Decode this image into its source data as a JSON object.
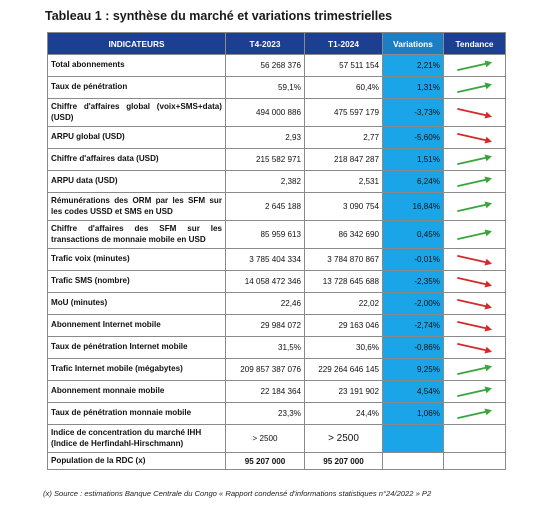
{
  "title": "Tableau 1 : synthèse du marché et variations trimestrielles",
  "headers": {
    "indicators": "INDICATEURS",
    "t4_2023": "T4-2023",
    "t1_2024": "T1-2024",
    "variations": "Variations",
    "tendance": "Tendance"
  },
  "colors": {
    "header_bg": "#1d3f91",
    "variation_bg": "#1aa5e8",
    "arrow_up": "#3aa53a",
    "arrow_down": "#d42a2a"
  },
  "rows": [
    {
      "label": "Total abonnements",
      "t4": "56 268 376",
      "t1": "57 511 154",
      "var": "2,21%",
      "trend": "up"
    },
    {
      "label": "Taux de pénétration",
      "t4": "59,1%",
      "t1": "60,4%",
      "var": "1,31%",
      "trend": "up"
    },
    {
      "label": "Chiffre d'affaires global (voix+SMS+data) (USD)",
      "t4": "494 000 886",
      "t1": "475 597 179",
      "var": "-3,73%",
      "trend": "down"
    },
    {
      "label": "ARPU global (USD)",
      "t4": "2,93",
      "t1": "2,77",
      "var": "-5,60%",
      "trend": "down"
    },
    {
      "label": "Chiffre d'affaires data (USD)",
      "t4": "215 582 971",
      "t1": "218 847 287",
      "var": "1,51%",
      "trend": "up"
    },
    {
      "label": "ARPU data (USD)",
      "t4": "2,382",
      "t1": "2,531",
      "var": "6,24%",
      "trend": "up"
    },
    {
      "label": "Rémunérations des ORM par les SFM sur les codes USSD et SMS en USD",
      "t4": "2 645 188",
      "t1": "3 090 754",
      "var": "16,84%",
      "trend": "up"
    },
    {
      "label": "Chiffre d'affaires des SFM sur les transactions de monnaie mobile en USD",
      "t4": "85 959 613",
      "t1": "86 342 690",
      "var": "0,45%",
      "trend": "up"
    },
    {
      "label": "Trafic voix (minutes)",
      "t4": "3 785 404 334",
      "t1": "3 784 870 867",
      "var": "-0,01%",
      "trend": "down"
    },
    {
      "label": "Trafic SMS (nombre)",
      "t4": "14 058 472 346",
      "t1": "13 728 645 688",
      "var": "-2,35%",
      "trend": "down"
    },
    {
      "label": "MoU (minutes)",
      "t4": "22,46",
      "t1": "22,02",
      "var": "-2,00%",
      "trend": "down"
    },
    {
      "label": "Abonnement Internet mobile",
      "t4": "29 984 072",
      "t1": "29 163 046",
      "var": "-2,74%",
      "trend": "down"
    },
    {
      "label": "Taux de pénétration Internet mobile",
      "t4": "31,5%",
      "t1": "30,6%",
      "var": "-0,86%",
      "trend": "down"
    },
    {
      "label": "Trafic Internet mobile (mégabytes)",
      "t4": "209 857 387 076",
      "t1": "229 264 646 145",
      "var": "9,25%",
      "trend": "up"
    },
    {
      "label": "Abonnement monnaie mobile",
      "t4": "22 184 364",
      "t1": "23 191 902",
      "var": "4,54%",
      "trend": "up"
    },
    {
      "label": "Taux de pénétration monnaie mobile",
      "t4": "23,3%",
      "t1": "24,4%",
      "var": "1,06%",
      "trend": "up"
    }
  ],
  "ihh_row": {
    "label": "Indice de concentration du marché IHH (Indice de Herfindahl-Hirschmann)",
    "t4": "> 2500",
    "t1": "> 2500"
  },
  "population_row": {
    "label": "Population de la RDC (x)",
    "t4": "95 207 000",
    "t1": "95 207 000"
  },
  "source": "(x) Source : estimations Banque Centrale du Congo « Rapport condensé d'informations statistiques n°24/2022 » P2"
}
